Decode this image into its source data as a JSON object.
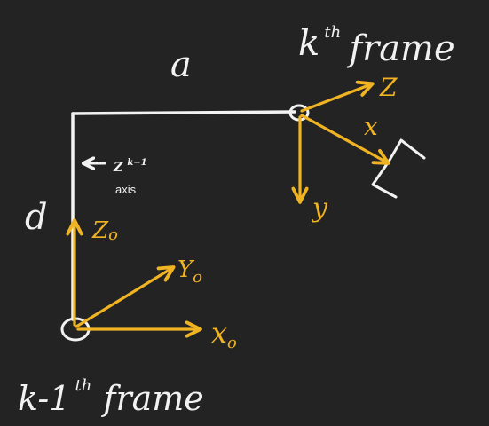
{
  "colors": {
    "background": "#232323",
    "link": "#f2f2f2",
    "axis": "#f0b323"
  },
  "labels": {
    "a": "a",
    "d": "d",
    "k_frame": "k",
    "k_frame_sup": "th",
    "k_frame_word": "frame",
    "k1_frame": "k-1",
    "k1_frame_sup": "th",
    "k1_frame_word": "frame",
    "zk1_symbol": "Z",
    "zk1_sup": "k−1",
    "zk1_axis_word": "axis",
    "z0": "Z",
    "z0_sub": "o",
    "y0": "Y",
    "y0_sub": "o",
    "x0": "x",
    "x0_sub": "o",
    "z": "Z",
    "x": "x",
    "y": "y"
  }
}
